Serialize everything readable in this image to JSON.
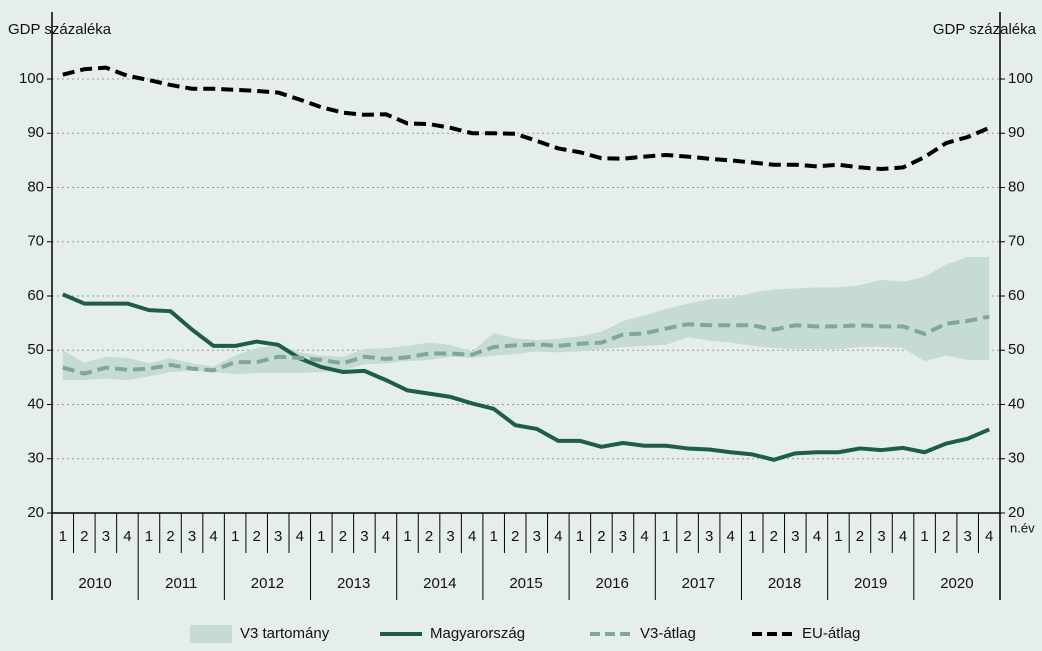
{
  "chart_data": {
    "type": "line",
    "ylabel": "GDP százaléka",
    "y2label": "GDP százaléka",
    "xlabel": "n.év",
    "categories": [
      "1",
      "2",
      "3",
      "4",
      "1",
      "2",
      "3",
      "4",
      "1",
      "2",
      "3",
      "4",
      "1",
      "2",
      "3",
      "4",
      "1",
      "2",
      "3",
      "4",
      "1",
      "2",
      "3",
      "4",
      "1",
      "2",
      "3",
      "4",
      "1",
      "2",
      "3",
      "4",
      "1",
      "2",
      "3",
      "4",
      "1",
      "2",
      "3",
      "4",
      "1",
      "2",
      "3",
      "4"
    ],
    "groups": [
      "2010",
      "2011",
      "2012",
      "2013",
      "2014",
      "2015",
      "2016",
      "2017",
      "2018",
      "2019",
      "2020"
    ],
    "ylim": [
      20,
      100
    ],
    "yticks": [
      20,
      30,
      40,
      50,
      60,
      70,
      80,
      90,
      100
    ],
    "y2lim": [
      20,
      100
    ],
    "y2ticks": [
      20,
      30,
      40,
      50,
      60,
      70,
      80,
      90,
      100
    ],
    "grid": true,
    "legend": "bottom",
    "series": [
      {
        "name": "V3 tartomány",
        "color": "#c6dbd2",
        "style": "band",
        "low": [
          44.5,
          44.5,
          44.8,
          44.5,
          45.2,
          46.0,
          46.2,
          46.0,
          45.6,
          45.8,
          45.8,
          45.8,
          46.0,
          46.3,
          47.4,
          47.6,
          48.0,
          48.2,
          48.8,
          48.6,
          49.0,
          49.3,
          49.8,
          49.6,
          49.8,
          50.2,
          50.6,
          50.8,
          51.0,
          52.4,
          51.8,
          51.4,
          50.8,
          50.4,
          50.2,
          50.2,
          50.2,
          50.6,
          50.6,
          50.4,
          48.0,
          49.0,
          48.2,
          48.2
        ],
        "high": [
          50.0,
          47.7,
          48.8,
          48.6,
          47.6,
          48.5,
          47.6,
          47.0,
          49.0,
          50.4,
          51.0,
          49.6,
          49.0,
          48.8,
          50.2,
          50.4,
          50.8,
          51.4,
          51.0,
          49.8,
          53.2,
          52.2,
          51.9,
          52.1,
          52.6,
          53.4,
          55.4,
          56.4,
          57.6,
          58.6,
          59.4,
          59.6,
          60.6,
          61.2,
          61.4,
          61.6,
          61.6,
          62.0,
          63.0,
          62.6,
          63.6,
          65.8,
          67.2,
          67.2
        ]
      },
      {
        "name": "Magyarország",
        "color": "#1d5e45",
        "style": "solid",
        "values": [
          60.3,
          58.6,
          58.6,
          58.6,
          57.4,
          57.2,
          53.8,
          50.8,
          50.8,
          51.6,
          51.0,
          48.5,
          46.9,
          46.0,
          46.2,
          44.5,
          42.6,
          42.0,
          41.4,
          40.2,
          39.2,
          36.2,
          35.5,
          33.3,
          33.3,
          32.2,
          32.9,
          32.4,
          32.4,
          31.9,
          31.7,
          31.2,
          30.8,
          29.8,
          31.0,
          31.2,
          31.2,
          31.9,
          31.6,
          32.0,
          31.2,
          32.8,
          33.7,
          35.4
        ]
      },
      {
        "name": "V3-átlag",
        "color": "#7fa898",
        "style": "dashed",
        "values": [
          46.8,
          45.7,
          46.8,
          46.4,
          46.6,
          47.3,
          46.6,
          46.3,
          47.8,
          47.8,
          48.8,
          48.6,
          48.2,
          47.6,
          48.8,
          48.4,
          48.7,
          49.4,
          49.4,
          49.2,
          50.6,
          50.9,
          51.1,
          50.8,
          51.2,
          51.4,
          52.9,
          53.1,
          54.0,
          54.8,
          54.6,
          54.6,
          54.6,
          53.8,
          54.6,
          54.4,
          54.4,
          54.6,
          54.4,
          54.4,
          53.0,
          54.9,
          55.4,
          56.2
        ]
      },
      {
        "name": "EU-átlag",
        "color": "#000000",
        "style": "dashed",
        "values": [
          100.8,
          101.8,
          102.1,
          100.6,
          99.8,
          98.9,
          98.2,
          98.2,
          98.0,
          97.8,
          97.5,
          96.2,
          94.8,
          93.8,
          93.4,
          93.5,
          91.8,
          91.7,
          91.0,
          90.0,
          90.0,
          89.9,
          88.6,
          87.2,
          86.5,
          85.4,
          85.3,
          85.7,
          86.0,
          85.7,
          85.3,
          85.0,
          84.6,
          84.2,
          84.2,
          83.9,
          84.2,
          83.7,
          83.4,
          83.7,
          85.6,
          88.2,
          89.3,
          91.0
        ]
      }
    ]
  }
}
